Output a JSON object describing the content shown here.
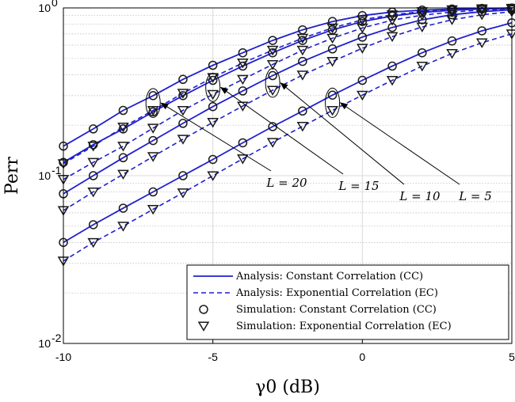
{
  "chart_data": {
    "type": "line",
    "xlabel": "γ0 (dB)",
    "ylabel": "Perr",
    "xlim": [
      -10,
      5
    ],
    "ylim": [
      0.01,
      1
    ],
    "yscale": "log",
    "grid": true,
    "legend_placement": "bottom-right",
    "x_ticks": [
      "-10",
      "-5",
      "0",
      "5"
    ],
    "y_ticks": [
      {
        "base": "10",
        "exp": "0",
        "value": 1
      },
      {
        "base": "10",
        "exp": "-1",
        "value": 0.1
      },
      {
        "base": "10",
        "exp": "-2",
        "value": 0.01
      }
    ],
    "curves": [
      {
        "L": 20,
        "cc": [
          0.15,
          0.19,
          0.245,
          0.3,
          0.375,
          0.455,
          0.54,
          0.64,
          0.74,
          0.83,
          0.9,
          0.945,
          0.97,
          0.985,
          0.993,
          0.998
        ],
        "ec": [
          0.118,
          0.15,
          0.195,
          0.245,
          0.31,
          0.385,
          0.47,
          0.56,
          0.66,
          0.76,
          0.85,
          0.91,
          0.95,
          0.975,
          0.988,
          0.995
        ]
      },
      {
        "L": 15,
        "cc": [
          0.12,
          0.153,
          0.19,
          0.24,
          0.3,
          0.37,
          0.45,
          0.54,
          0.64,
          0.74,
          0.83,
          0.895,
          0.94,
          0.968,
          0.985,
          0.993
        ],
        "ec": [
          0.095,
          0.12,
          0.15,
          0.192,
          0.245,
          0.305,
          0.375,
          0.46,
          0.56,
          0.66,
          0.76,
          0.845,
          0.905,
          0.945,
          0.97,
          0.985
        ]
      },
      {
        "L": 10,
        "cc": [
          0.078,
          0.1,
          0.128,
          0.162,
          0.205,
          0.258,
          0.32,
          0.395,
          0.48,
          0.57,
          0.67,
          0.765,
          0.85,
          0.91,
          0.95,
          0.975
        ],
        "ec": [
          0.062,
          0.08,
          0.102,
          0.13,
          0.165,
          0.208,
          0.26,
          0.323,
          0.398,
          0.48,
          0.575,
          0.675,
          0.77,
          0.85,
          0.91,
          0.95
        ]
      },
      {
        "L": 5,
        "cc": [
          0.04,
          0.051,
          0.064,
          0.08,
          0.1,
          0.125,
          0.157,
          0.196,
          0.243,
          0.302,
          0.37,
          0.45,
          0.54,
          0.635,
          0.73,
          0.815
        ],
        "ec": [
          0.031,
          0.04,
          0.05,
          0.063,
          0.079,
          0.1,
          0.126,
          0.158,
          0.197,
          0.245,
          0.302,
          0.37,
          0.45,
          0.535,
          0.62,
          0.7
        ]
      }
    ],
    "annotations": [
      "L = 20",
      "L = 15",
      "L = 10",
      "L = 5"
    ],
    "legend": [
      {
        "label": "Analysis: Constant Correlation (CC)",
        "style": "solid-line"
      },
      {
        "label": "Analysis: Exponential Correlation (EC)",
        "style": "dashed-line"
      },
      {
        "label": "Simulation: Constant Correlation (CC)",
        "style": "circle-marker"
      },
      {
        "label": "Simulation: Exponential Correlation (EC)",
        "style": "triangle-marker"
      }
    ],
    "colors": {
      "line": "#1f1fcf",
      "marker": "#1a1a1a",
      "grid": "#d9d9d9",
      "minor_grid": "#b5b5b5"
    }
  }
}
